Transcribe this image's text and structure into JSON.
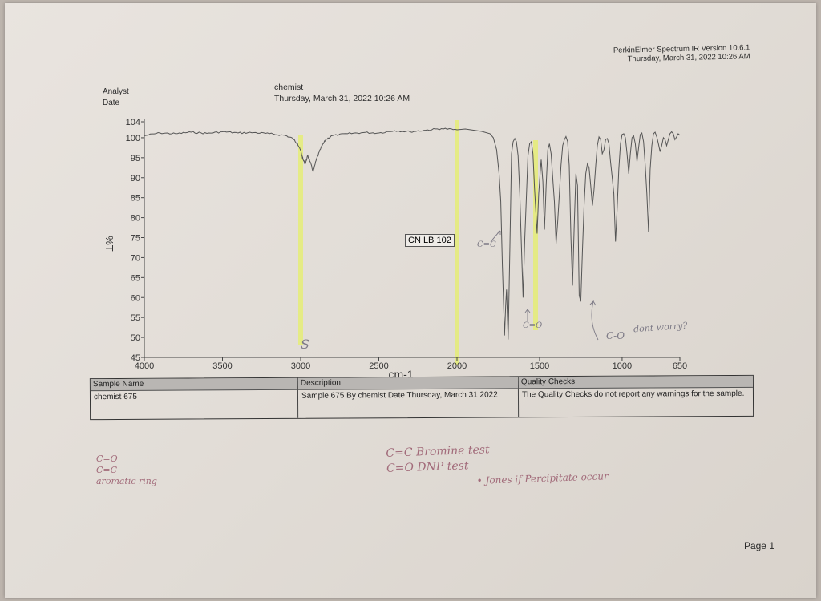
{
  "header": {
    "software": "PerkinElmer Spectrum IR Version 10.6.1",
    "date_time": "Thursday, March 31, 2022 10:26 AM"
  },
  "meta": {
    "analyst_label": "Analyst",
    "date_label": "Date",
    "analyst_value": "chemist",
    "date_value": "Thursday, March 31, 2022 10:26 AM"
  },
  "chart_data": {
    "type": "line",
    "xlabel": "cm-1",
    "ylabel": "%T",
    "xlim": [
      4000,
      650
    ],
    "ylim": [
      45,
      104
    ],
    "x_reversed": true,
    "xticks": [
      "4000",
      "3500",
      "3000",
      "2500",
      "2000",
      "1500",
      "1000",
      "650"
    ],
    "yticks": [
      "104",
      "100",
      "95",
      "90",
      "85",
      "80",
      "75",
      "70",
      "65",
      "60",
      "55",
      "50",
      "45"
    ],
    "grid": false,
    "annotation": "CN LB 102",
    "series": [
      {
        "name": "",
        "color": "#555555",
        "x": [
          4000,
          3900,
          3800,
          3700,
          3600,
          3500,
          3400,
          3300,
          3200,
          3100,
          3050,
          3020,
          3000,
          2985,
          2970,
          2955,
          2940,
          2920,
          2900,
          2870,
          2840,
          2800,
          2700,
          2600,
          2500,
          2400,
          2300,
          2200,
          2100,
          2000,
          1950,
          1900,
          1850,
          1800,
          1780,
          1760,
          1745,
          1735,
          1725,
          1712,
          1705,
          1700,
          1690,
          1680,
          1670,
          1660,
          1650,
          1640,
          1630,
          1620,
          1610,
          1600,
          1590,
          1580,
          1570,
          1560,
          1550,
          1540,
          1530,
          1515,
          1505,
          1495,
          1490,
          1480,
          1470,
          1460,
          1450,
          1440,
          1430,
          1420,
          1410,
          1400,
          1390,
          1380,
          1370,
          1360,
          1350,
          1340,
          1330,
          1320,
          1310,
          1300,
          1290,
          1280,
          1270,
          1260,
          1250,
          1240,
          1230,
          1220,
          1210,
          1200,
          1190,
          1180,
          1170,
          1160,
          1150,
          1140,
          1130,
          1120,
          1110,
          1100,
          1090,
          1080,
          1070,
          1060,
          1050,
          1040,
          1030,
          1020,
          1010,
          1000,
          990,
          980,
          970,
          960,
          950,
          940,
          930,
          920,
          910,
          900,
          890,
          880,
          870,
          860,
          850,
          840,
          830,
          820,
          810,
          800,
          790,
          780,
          770,
          760,
          750,
          740,
          730,
          720,
          710,
          700,
          690,
          680,
          670,
          660,
          650
        ],
        "y": [
          100.5,
          101.2,
          101.0,
          101.4,
          101.1,
          101.5,
          101.2,
          101.3,
          101.0,
          100.6,
          99.8,
          98.5,
          96.8,
          94.5,
          93.5,
          95.5,
          94.0,
          91.5,
          94.5,
          97.5,
          99.5,
          100.5,
          101.0,
          101.3,
          101.2,
          101.8,
          101.5,
          101.9,
          102.3,
          102.0,
          102.2,
          101.9,
          101.6,
          101.0,
          100.0,
          97.0,
          91.0,
          84.0,
          68.0,
          50.5,
          58.0,
          62.0,
          49.5,
          72.0,
          96.0,
          99.0,
          99.8,
          99.0,
          95.5,
          86.0,
          73.0,
          60.0,
          74.0,
          85.0,
          95.5,
          98.5,
          99.0,
          96.0,
          87.0,
          76.0,
          86.0,
          92.0,
          94.5,
          89.0,
          77.0,
          88.0,
          97.0,
          98.5,
          96.0,
          90.0,
          84.0,
          73.5,
          79.0,
          86.0,
          93.0,
          98.0,
          99.5,
          100.3,
          99.0,
          93.0,
          75.0,
          63.0,
          78.0,
          91.0,
          88.0,
          60.5,
          59.0,
          72.0,
          83.5,
          91.0,
          93.5,
          92.5,
          88.0,
          83.0,
          87.0,
          93.0,
          98.0,
          100.2,
          99.5,
          96.0,
          97.0,
          99.5,
          99.8,
          98.5,
          94.0,
          90.0,
          86.0,
          74.0,
          82.0,
          92.0,
          98.5,
          100.8,
          101.0,
          100.0,
          96.0,
          91.0,
          96.0,
          100.0,
          100.5,
          98.5,
          94.0,
          97.5,
          100.8,
          101.2,
          99.0,
          93.0,
          86.0,
          76.5,
          92.0,
          98.0,
          101.0,
          101.4,
          100.2,
          98.5,
          96.5,
          98.0,
          100.0,
          99.5,
          98.0,
          99.5,
          101.0,
          101.5,
          101.0,
          99.5,
          100.2,
          101.0,
          100.6
        ]
      }
    ]
  },
  "table": {
    "sample_name_label": "Sample Name",
    "sample_name_value": "chemist 675",
    "description_label": "Description",
    "description_value": "Sample 675 By chemist Date Thursday, March 31 2022",
    "quality_label": "Quality Checks",
    "quality_value": "The Quality Checks do not report any warnings for the sample."
  },
  "handwriting": {
    "peak_s": "S",
    "peak_cc": "C=C",
    "peak_co": "C=O",
    "peak_c_o": "C-O",
    "c_o_note": "dont worry?",
    "left_1": "C=O",
    "left_2": "C=C",
    "left_3": "aromatic ring",
    "center_1": "C=C Bromine test",
    "center_2": "C=O DNP test",
    "center_3": "• Jones if Percipitate occur"
  },
  "footer": {
    "page": "Page 1"
  }
}
